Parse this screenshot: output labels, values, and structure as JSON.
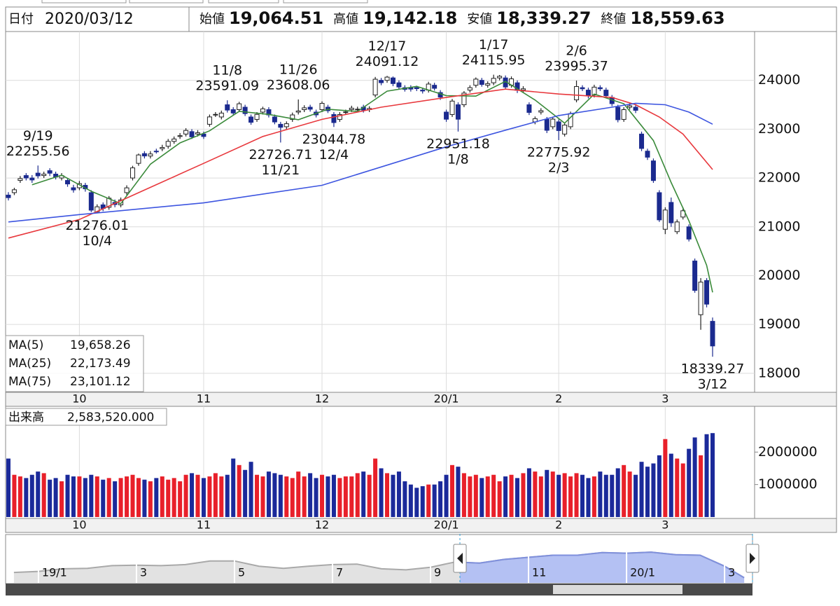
{
  "header": {
    "date_label": "日付",
    "date": "2020/03/12",
    "items": [
      {
        "label": "始値",
        "value": "19,064.51",
        "color": "#111111"
      },
      {
        "label": "高値",
        "value": "19,142.18",
        "color": "#e8141e"
      },
      {
        "label": "安値",
        "value": "18,339.27",
        "color": "#18781e"
      },
      {
        "label": "終値",
        "value": "18,559.63",
        "color": "#111111"
      }
    ]
  },
  "chart_data": [
    {
      "type": "candlestick",
      "xlim": [
        -0.47,
        126.1
      ],
      "ylim": [
        17610,
        25000
      ],
      "yticks": [
        18000,
        19000,
        20000,
        21000,
        22000,
        23000,
        24000
      ],
      "xticks": [
        {
          "value": 12,
          "label": "10"
        },
        {
          "value": 33,
          "label": "11"
        },
        {
          "value": 53,
          "label": "12"
        },
        {
          "value": 74,
          "label": "20/1"
        },
        {
          "value": 93,
          "label": "2"
        },
        {
          "value": 111,
          "label": "3"
        }
      ],
      "grid": true,
      "up_color": "#ffffff",
      "down_color": "#1b2a8f",
      "open": [
        21650,
        21700,
        21950,
        22050,
        22000,
        22100,
        22050,
        22150,
        22080,
        22000,
        21950,
        21800,
        21800,
        21850,
        21700,
        21300,
        21450,
        21400,
        21500,
        21450,
        21700,
        22000,
        22300,
        22500,
        22450,
        22550,
        22600,
        22650,
        22750,
        22850,
        22900,
        22950,
        22900,
        22900,
        23100,
        23300,
        23250,
        23500,
        23400,
        23400,
        23450,
        23250,
        23200,
        23350,
        23400,
        23250,
        23100,
        23050,
        23200,
        23350,
        23400,
        23450,
        23350,
        23400,
        23450,
        23300,
        23200,
        23350,
        23400,
        23400,
        23450,
        23400,
        23700,
        24000,
        24000,
        24050,
        23950,
        23850,
        23850,
        23850,
        23800,
        23800,
        23900,
        23750,
        23350,
        23300,
        23500,
        23500,
        23800,
        23900,
        24000,
        23900,
        23950,
        24050,
        24050,
        23900,
        23950,
        23800,
        23500,
        23150,
        23350,
        23200,
        23050,
        23150,
        22900,
        23050,
        23600,
        23850,
        23800,
        23700,
        23850,
        23800,
        23650,
        23450,
        23200,
        23450,
        23450,
        22900,
        22550,
        22350,
        21700,
        20950,
        21500,
        20900,
        21200,
        21000,
        20300,
        19200,
        19900,
        19064.51
      ],
      "high": [
        21710,
        21800,
        22040,
        22100,
        22060,
        22255.56,
        22130,
        22200,
        22130,
        22100,
        22000,
        21860,
        21940,
        21900,
        21750,
        21460,
        21500,
        21630,
        21560,
        21600,
        21850,
        22250,
        22500,
        22550,
        22550,
        22600,
        22680,
        22800,
        22850,
        22920,
        23020,
        23000,
        22980,
        22950,
        23300,
        23350,
        23380,
        23591.09,
        23450,
        23560,
        23500,
        23300,
        23350,
        23460,
        23450,
        23300,
        23150,
        23160,
        23340,
        23608.06,
        23490,
        23500,
        23400,
        23570,
        23500,
        23350,
        23350,
        23400,
        23480,
        23460,
        23500,
        23470,
        24070,
        24050,
        24091.12,
        24080,
        24000,
        23900,
        23900,
        23890,
        23850,
        23970,
        23950,
        23800,
        23400,
        23620,
        23550,
        23780,
        23900,
        24060,
        24050,
        23980,
        24115.95,
        24110,
        24100,
        24080,
        24000,
        23880,
        23550,
        23260,
        23430,
        23250,
        23250,
        23200,
        23130,
        23360,
        23995.37,
        23900,
        23850,
        23910,
        23900,
        23850,
        23700,
        23500,
        23450,
        23530,
        23500,
        22950,
        22600,
        22400,
        21750,
        21400,
        21600,
        21150,
        21400,
        21050,
        20350,
        19950,
        19950,
        19142.18
      ],
      "low": [
        21540,
        21650,
        21900,
        21950,
        21900,
        21990,
        22000,
        22040,
        21970,
        21950,
        21820,
        21700,
        21750,
        21720,
        21300,
        21276.01,
        21320,
        21350,
        21400,
        21400,
        21650,
        21950,
        22250,
        22400,
        22400,
        22500,
        22550,
        22600,
        22700,
        22800,
        22850,
        22800,
        22850,
        22800,
        23050,
        23250,
        23200,
        23340,
        23280,
        23350,
        23270,
        23090,
        23150,
        23300,
        23240,
        23100,
        22726.71,
        23000,
        23150,
        23300,
        23350,
        23360,
        23240,
        23350,
        23330,
        23044.78,
        23150,
        23300,
        23350,
        23350,
        23340,
        23350,
        23650,
        23900,
        23950,
        23880,
        23810,
        23770,
        23770,
        23780,
        23730,
        23750,
        23790,
        23600,
        23150,
        23250,
        22951.18,
        23450,
        23750,
        23850,
        23870,
        23850,
        23900,
        24000,
        23810,
        23850,
        23740,
        23750,
        23290,
        23100,
        23300,
        22920,
        23000,
        22775.92,
        22850,
        23000,
        23550,
        23780,
        23630,
        23650,
        23780,
        23630,
        23470,
        23140,
        23150,
        23400,
        23330,
        22550,
        22370,
        21900,
        21100,
        20850,
        21000,
        20850,
        21150,
        20700,
        19650,
        18891,
        19350,
        18339.27
      ],
      "close": [
        21597,
        21759,
        21988,
        22001,
        21960,
        22044,
        22079,
        22098,
        22020,
        22048,
        21878,
        21756,
        21885,
        21778,
        21341,
        21410,
        21375,
        21587,
        21456,
        21551,
        21798,
        22207,
        22472,
        22451,
        22492,
        22548,
        22625,
        22750,
        22799,
        22867,
        22974,
        22843,
        22927,
        22850,
        23251,
        23303,
        23330,
        23391,
        23331,
        23520,
        23319,
        23141,
        23303,
        23416,
        23292,
        23148,
        23038,
        23112,
        23292,
        23373,
        23437,
        23409,
        23293,
        23529,
        23379,
        23135,
        23300,
        23354,
        23430,
        23410,
        23391,
        23424,
        24023,
        23952,
        24066,
        23934,
        23864,
        23816,
        23821,
        23830,
        23782,
        23924,
        23837,
        23656,
        23204,
        23575,
        23204,
        23739,
        23850,
        24025,
        23916,
        23933,
        24041,
        24083,
        23864,
        24031,
        23795,
        23827,
        23343,
        23215,
        23379,
        22977,
        23205,
        22971,
        23084,
        23319,
        23873,
        23827,
        23685,
        23861,
        23827,
        23687,
        23523,
        23193,
        23400,
        23479,
        23386,
        22605,
        22426,
        21948,
        21142,
        21344,
        21082,
        21100,
        21329,
        20749,
        19698,
        19867,
        19416,
        18559.63
      ],
      "series": [
        {
          "name": "MA(5)",
          "color": "#3a8a3a",
          "current_label": "19,658.26",
          "x": [
            4,
            9,
            14,
            19,
            24,
            29,
            34,
            39,
            44,
            49,
            54,
            59,
            64,
            69,
            74,
            79,
            84,
            89,
            94,
            99,
            104,
            109,
            112,
            115,
            118,
            119
          ],
          "values": [
            21861,
            22058,
            21728,
            21474,
            22284,
            22718,
            22967,
            23365,
            23302,
            23193,
            23409,
            23363,
            23779,
            23877,
            23687,
            23677,
            23979,
            23597,
            23123,
            23719,
            23520,
            22767,
            21908,
            21121,
            20212,
            19658.26
          ]
        },
        {
          "name": "MA(25)",
          "color": "#e8383d",
          "current_label": "22,173.49",
          "x": [
            0,
            12,
            22,
            33,
            43,
            53,
            63,
            74,
            84,
            93,
            102,
            106,
            110,
            114,
            119
          ],
          "values": [
            20770,
            21150,
            21700,
            22300,
            22850,
            23200,
            23450,
            23650,
            23820,
            23720,
            23650,
            23500,
            23250,
            22900,
            22173.49
          ]
        },
        {
          "name": "MA(75)",
          "color": "#3d55e0",
          "current_label": "23,101.12",
          "x": [
            0,
            12,
            33,
            53,
            74,
            84,
            93,
            102,
            106,
            111,
            115,
            119
          ],
          "values": [
            21100,
            21250,
            21490,
            21850,
            22640,
            22980,
            23280,
            23450,
            23530,
            23500,
            23350,
            23101.12
          ]
        }
      ],
      "annotations": [
        {
          "date": "9/19",
          "x": 5,
          "value": 22255.56
        },
        {
          "date": "10/4",
          "x": 15,
          "value": 21276.01
        },
        {
          "date": "11/8",
          "x": 37,
          "value": 23591.09
        },
        {
          "date": "11/21",
          "x": 46,
          "value": 22726.71
        },
        {
          "date": "11/26",
          "x": 49,
          "value": 23608.06
        },
        {
          "date": "12/4",
          "x": 55,
          "value": 23044.78
        },
        {
          "date": "12/17",
          "x": 64,
          "value": 24091.12
        },
        {
          "date": "1/8",
          "x": 76,
          "value": 22951.18
        },
        {
          "date": "1/17",
          "x": 82,
          "value": 24115.95
        },
        {
          "date": "2/3",
          "x": 93,
          "value": 22775.92
        },
        {
          "date": "2/6",
          "x": 96,
          "value": 23995.37
        },
        {
          "date": "3/12",
          "x": 119,
          "value": 18339.27
        }
      ]
    },
    {
      "type": "bar",
      "title": "出来高",
      "current_label": "2,583,520.000",
      "xlim": [
        -0.47,
        126.1
      ],
      "ylim": [
        0,
        3300000
      ],
      "yticks": [
        1000000,
        2000000
      ],
      "xticks": [
        {
          "value": 12,
          "label": "10"
        },
        {
          "value": 33,
          "label": "11"
        },
        {
          "value": 53,
          "label": "12"
        },
        {
          "value": 74,
          "label": "20/1"
        },
        {
          "value": 93,
          "label": "2"
        },
        {
          "value": 111,
          "label": "3"
        }
      ],
      "up_color": "#e8202a",
      "down_color": "#1b2a9a",
      "values": [
        1800000,
        1300000,
        1250000,
        1200000,
        1300000,
        1400000,
        1350000,
        1150000,
        1200000,
        1100000,
        1300000,
        1250000,
        1250000,
        1200000,
        1300000,
        1250000,
        1150000,
        1200000,
        1100000,
        1200000,
        1250000,
        1300000,
        1200000,
        1150000,
        1100000,
        1200000,
        1250000,
        1150000,
        1200000,
        1100000,
        1300000,
        1350000,
        1300000,
        1200000,
        1250000,
        1350000,
        1250000,
        1300000,
        1800000,
        1600000,
        1450000,
        1700000,
        1300000,
        1250000,
        1400000,
        1350000,
        1300000,
        1250000,
        1200000,
        1400000,
        1250000,
        1350000,
        1200000,
        1300000,
        1250000,
        1300000,
        1200000,
        1250000,
        1250000,
        1350000,
        1400000,
        1300000,
        1800000,
        1500000,
        1350000,
        1300000,
        1400000,
        1100000,
        1000000,
        900000,
        950000,
        1000000,
        1000000,
        1100000,
        1300000,
        1600000,
        1550000,
        1350000,
        1250000,
        1300000,
        1200000,
        1250000,
        1300000,
        1100000,
        1250000,
        1300000,
        1200000,
        1350000,
        1500000,
        1400000,
        1250000,
        1450000,
        1400000,
        1300000,
        1350000,
        1250000,
        1350000,
        1300000,
        1200000,
        1250000,
        1400000,
        1300000,
        1300000,
        1500000,
        1600000,
        1400000,
        1300000,
        1700000,
        1550000,
        1650000,
        1900000,
        2400000,
        1950000,
        1800000,
        1650000,
        2100000,
        2450000,
        1900000,
        2550000,
        2583520
      ]
    },
    {
      "type": "area",
      "xlim": [
        -0.67,
        14.57
      ],
      "ylim": [
        18000,
        27000
      ],
      "color": "#a9a9a9",
      "selection": [
        8.6,
        14.57
      ],
      "selection_color": "#b4c1f3",
      "x": [
        -0.5,
        0,
        0.5,
        1,
        1.5,
        2,
        2.5,
        3,
        3.5,
        4,
        4.5,
        5,
        5.5,
        6,
        6.5,
        7,
        7.5,
        8,
        8.5,
        9,
        9.5,
        10,
        10.5,
        11,
        11.5,
        12,
        12.5,
        13,
        13.5,
        14,
        14.4
      ],
      "values": [
        20000,
        20200,
        20700,
        20800,
        21300,
        21400,
        21300,
        21500,
        22200,
        22200,
        21200,
        20800,
        21200,
        21500,
        21600,
        20700,
        20500,
        21000,
        22000,
        21800,
        22500,
        22900,
        23300,
        23300,
        23800,
        23700,
        23900,
        23400,
        23300,
        21200,
        19000
      ],
      "xticks": [
        {
          "value": 0,
          "label": "19/1"
        },
        {
          "value": 2,
          "label": "3"
        },
        {
          "value": 4,
          "label": "5"
        },
        {
          "value": 6,
          "label": "7"
        },
        {
          "value": 8,
          "label": "9"
        },
        {
          "value": 10,
          "label": "11"
        },
        {
          "value": 12,
          "label": "20/1"
        },
        {
          "value": 14,
          "label": "3"
        }
      ]
    }
  ]
}
